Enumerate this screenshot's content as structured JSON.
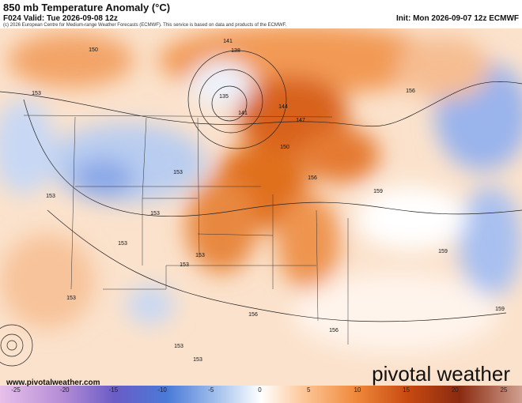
{
  "header": {
    "title": "850 mb Temperature Anomaly (°C)",
    "valid": "F024 Valid: Tue 2026-09-08 12z",
    "init": "Init: Mon 2026-09-07 12z ECMWF",
    "copyright": "(c) 2026 European Centre for Medium-range Weather Forecasts (ECMWF). This service is based on data and products of the ECMWF."
  },
  "map": {
    "contour_labels": [
      "150",
      "141",
      "138",
      "135",
      "141",
      "144",
      "147",
      "150",
      "153",
      "153",
      "156",
      "159",
      "156",
      "153",
      "153",
      "153",
      "153",
      "153",
      "153",
      "156",
      "156",
      "159",
      "159",
      "153",
      "153"
    ],
    "website": "www.pivotalweather.com",
    "logo": "pivotal weather"
  },
  "colorbar": {
    "ticks": [
      -25,
      -20,
      -15,
      -10,
      -5,
      0,
      5,
      10,
      15,
      20,
      25
    ]
  }
}
